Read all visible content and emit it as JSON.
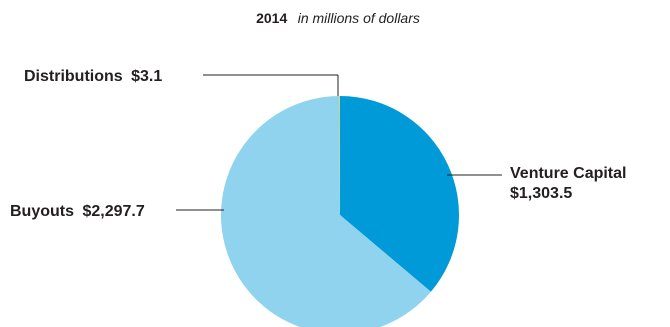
{
  "chart_data": {
    "type": "pie",
    "title": "2014",
    "subtitle": "in millions of dollars",
    "slices": [
      {
        "name": "Venture Capital",
        "value_label": "$1,303.5",
        "value": 1303.5,
        "color": "#009ad9"
      },
      {
        "name": "Buyouts",
        "value_label": "$2,297.7",
        "value": 2297.7,
        "color": "#8fd3ef"
      },
      {
        "name": "Distributions",
        "value_label": "$3.1",
        "value": 3.1,
        "color": "#e6d63c"
      }
    ]
  }
}
